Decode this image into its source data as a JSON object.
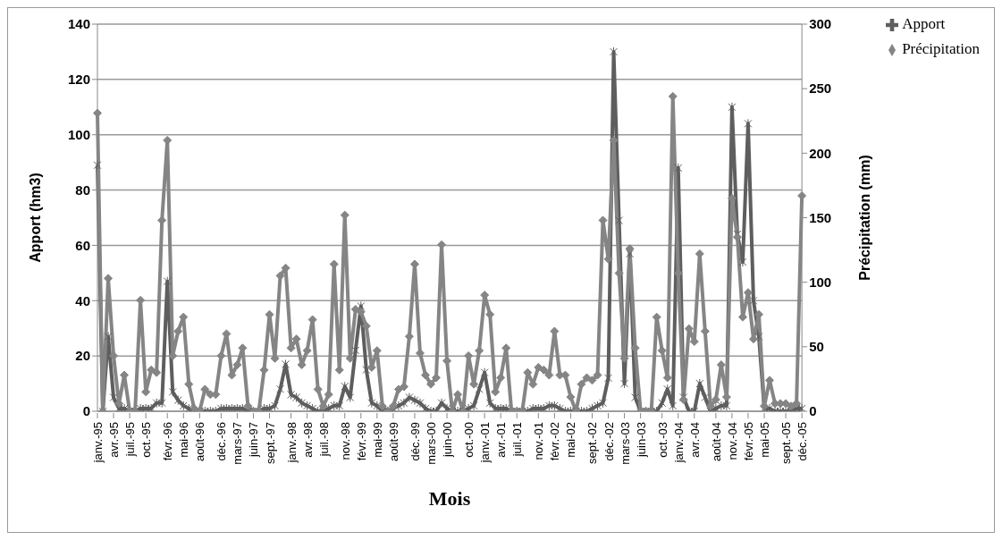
{
  "chart_data": {
    "type": "line",
    "xlabel": "Mois",
    "ylabel": "Apport (hm3)",
    "y2label": "Précipitation (mm)",
    "categories": [
      "janv.-95",
      null,
      null,
      "avr.-95",
      null,
      null,
      "juil.-95",
      null,
      null,
      "oct.-95",
      null,
      null,
      null,
      "févr.-96",
      null,
      null,
      "mai-96",
      null,
      null,
      "août-96",
      null,
      null,
      null,
      "déc.-96",
      null,
      null,
      "mars-97",
      null,
      null,
      "juin-97",
      null,
      null,
      "sept.-97",
      null,
      null,
      null,
      "janv.-98",
      null,
      null,
      "avr.-98",
      null,
      null,
      "juil.-98",
      null,
      null,
      null,
      "nov.-98",
      null,
      null,
      "févr.-99",
      null,
      null,
      "mai-99",
      null,
      null,
      "août-99",
      null,
      null,
      null,
      "déc.-99",
      null,
      null,
      "mars-00",
      null,
      null,
      "juin-00",
      null,
      null,
      null,
      "oct.-00",
      null,
      null,
      "janv.-01",
      null,
      null,
      "avr.-01",
      null,
      null,
      "juil.-01",
      null,
      null,
      null,
      "nov.-01",
      null,
      null,
      "févr.-02",
      null,
      null,
      "mai-02",
      null,
      null,
      null,
      "sept.-02",
      null,
      null,
      "déc.-02",
      null,
      null,
      "mars-03",
      null,
      null,
      "juin-03",
      null,
      null,
      null,
      "oct.-03",
      null,
      null,
      "janv.-04",
      null,
      null,
      "avr.-04",
      null,
      null,
      null,
      "août-04",
      null,
      null,
      "nov.-04",
      null,
      null,
      "févr.-05",
      null,
      null,
      "mai-05",
      null,
      null,
      null,
      "sept.-05",
      null,
      null,
      "déc.-05"
    ],
    "series": [
      {
        "name": "Apport",
        "color": "#5e5e5e",
        "marker": "cross",
        "values": [
          89,
          0,
          27,
          5,
          1,
          1,
          0,
          0,
          1,
          1,
          1,
          3,
          3,
          47,
          7,
          4,
          2,
          1,
          0,
          0,
          0,
          0,
          0,
          1,
          1,
          1,
          1,
          1,
          0,
          0,
          0,
          1,
          1,
          2,
          8,
          17,
          6,
          5,
          3,
          2,
          1,
          0,
          0,
          1,
          2,
          2,
          9,
          5,
          22,
          38,
          15,
          3,
          2,
          0,
          0,
          1,
          2,
          3,
          5,
          4,
          3,
          1,
          0,
          0,
          3,
          1,
          0,
          0,
          0,
          1,
          2,
          8,
          14,
          3,
          1,
          1,
          1,
          0,
          0,
          0,
          0,
          1,
          1,
          1,
          2,
          2,
          1,
          0,
          0,
          0,
          0,
          0,
          1,
          2,
          3,
          12,
          130,
          69,
          10,
          57,
          5,
          0,
          0,
          0,
          0,
          3,
          8,
          2,
          88,
          5,
          0,
          0,
          10,
          5,
          0,
          1,
          2,
          2,
          110,
          64,
          54,
          104,
          40,
          27,
          1,
          1,
          0,
          0,
          0,
          0,
          1,
          1
        ]
      },
      {
        "name": "Précipitation",
        "color": "#858585",
        "marker": "diamond",
        "axis": "y2",
        "values": [
          231,
          0,
          103,
          43,
          6,
          28,
          0,
          0,
          86,
          15,
          32,
          30,
          148,
          210,
          43,
          62,
          73,
          21,
          2,
          0,
          17,
          13,
          13,
          43,
          60,
          28,
          36,
          49,
          4,
          0,
          0,
          32,
          75,
          41,
          105,
          111,
          49,
          56,
          36,
          47,
          71,
          17,
          4,
          13,
          114,
          32,
          152,
          41,
          79,
          77,
          66,
          34,
          47,
          4,
          0,
          4,
          17,
          19,
          58,
          114,
          45,
          28,
          21,
          26,
          129,
          39,
          0,
          13,
          0,
          43,
          21,
          47,
          90,
          75,
          15,
          26,
          49,
          0,
          0,
          0,
          30,
          21,
          34,
          32,
          28,
          62,
          28,
          28,
          11,
          0,
          21,
          26,
          24,
          28,
          148,
          118,
          210,
          107,
          41,
          126,
          49,
          0,
          0,
          0,
          73,
          47,
          26,
          244,
          107,
          9,
          64,
          54,
          122,
          62,
          4,
          9,
          36,
          11,
          165,
          135,
          73,
          92,
          56,
          75,
          4,
          24,
          6,
          6,
          6,
          4,
          6,
          167
        ]
      }
    ],
    "ylim": [
      0,
      140
    ],
    "yticks": [
      0,
      20,
      40,
      60,
      80,
      100,
      120,
      140
    ],
    "y2lim": [
      0,
      300
    ],
    "y2ticks": [
      0,
      50,
      100,
      150,
      200,
      250,
      300
    ],
    "grid": "y",
    "legend": "top right",
    "line_style": "solid"
  }
}
